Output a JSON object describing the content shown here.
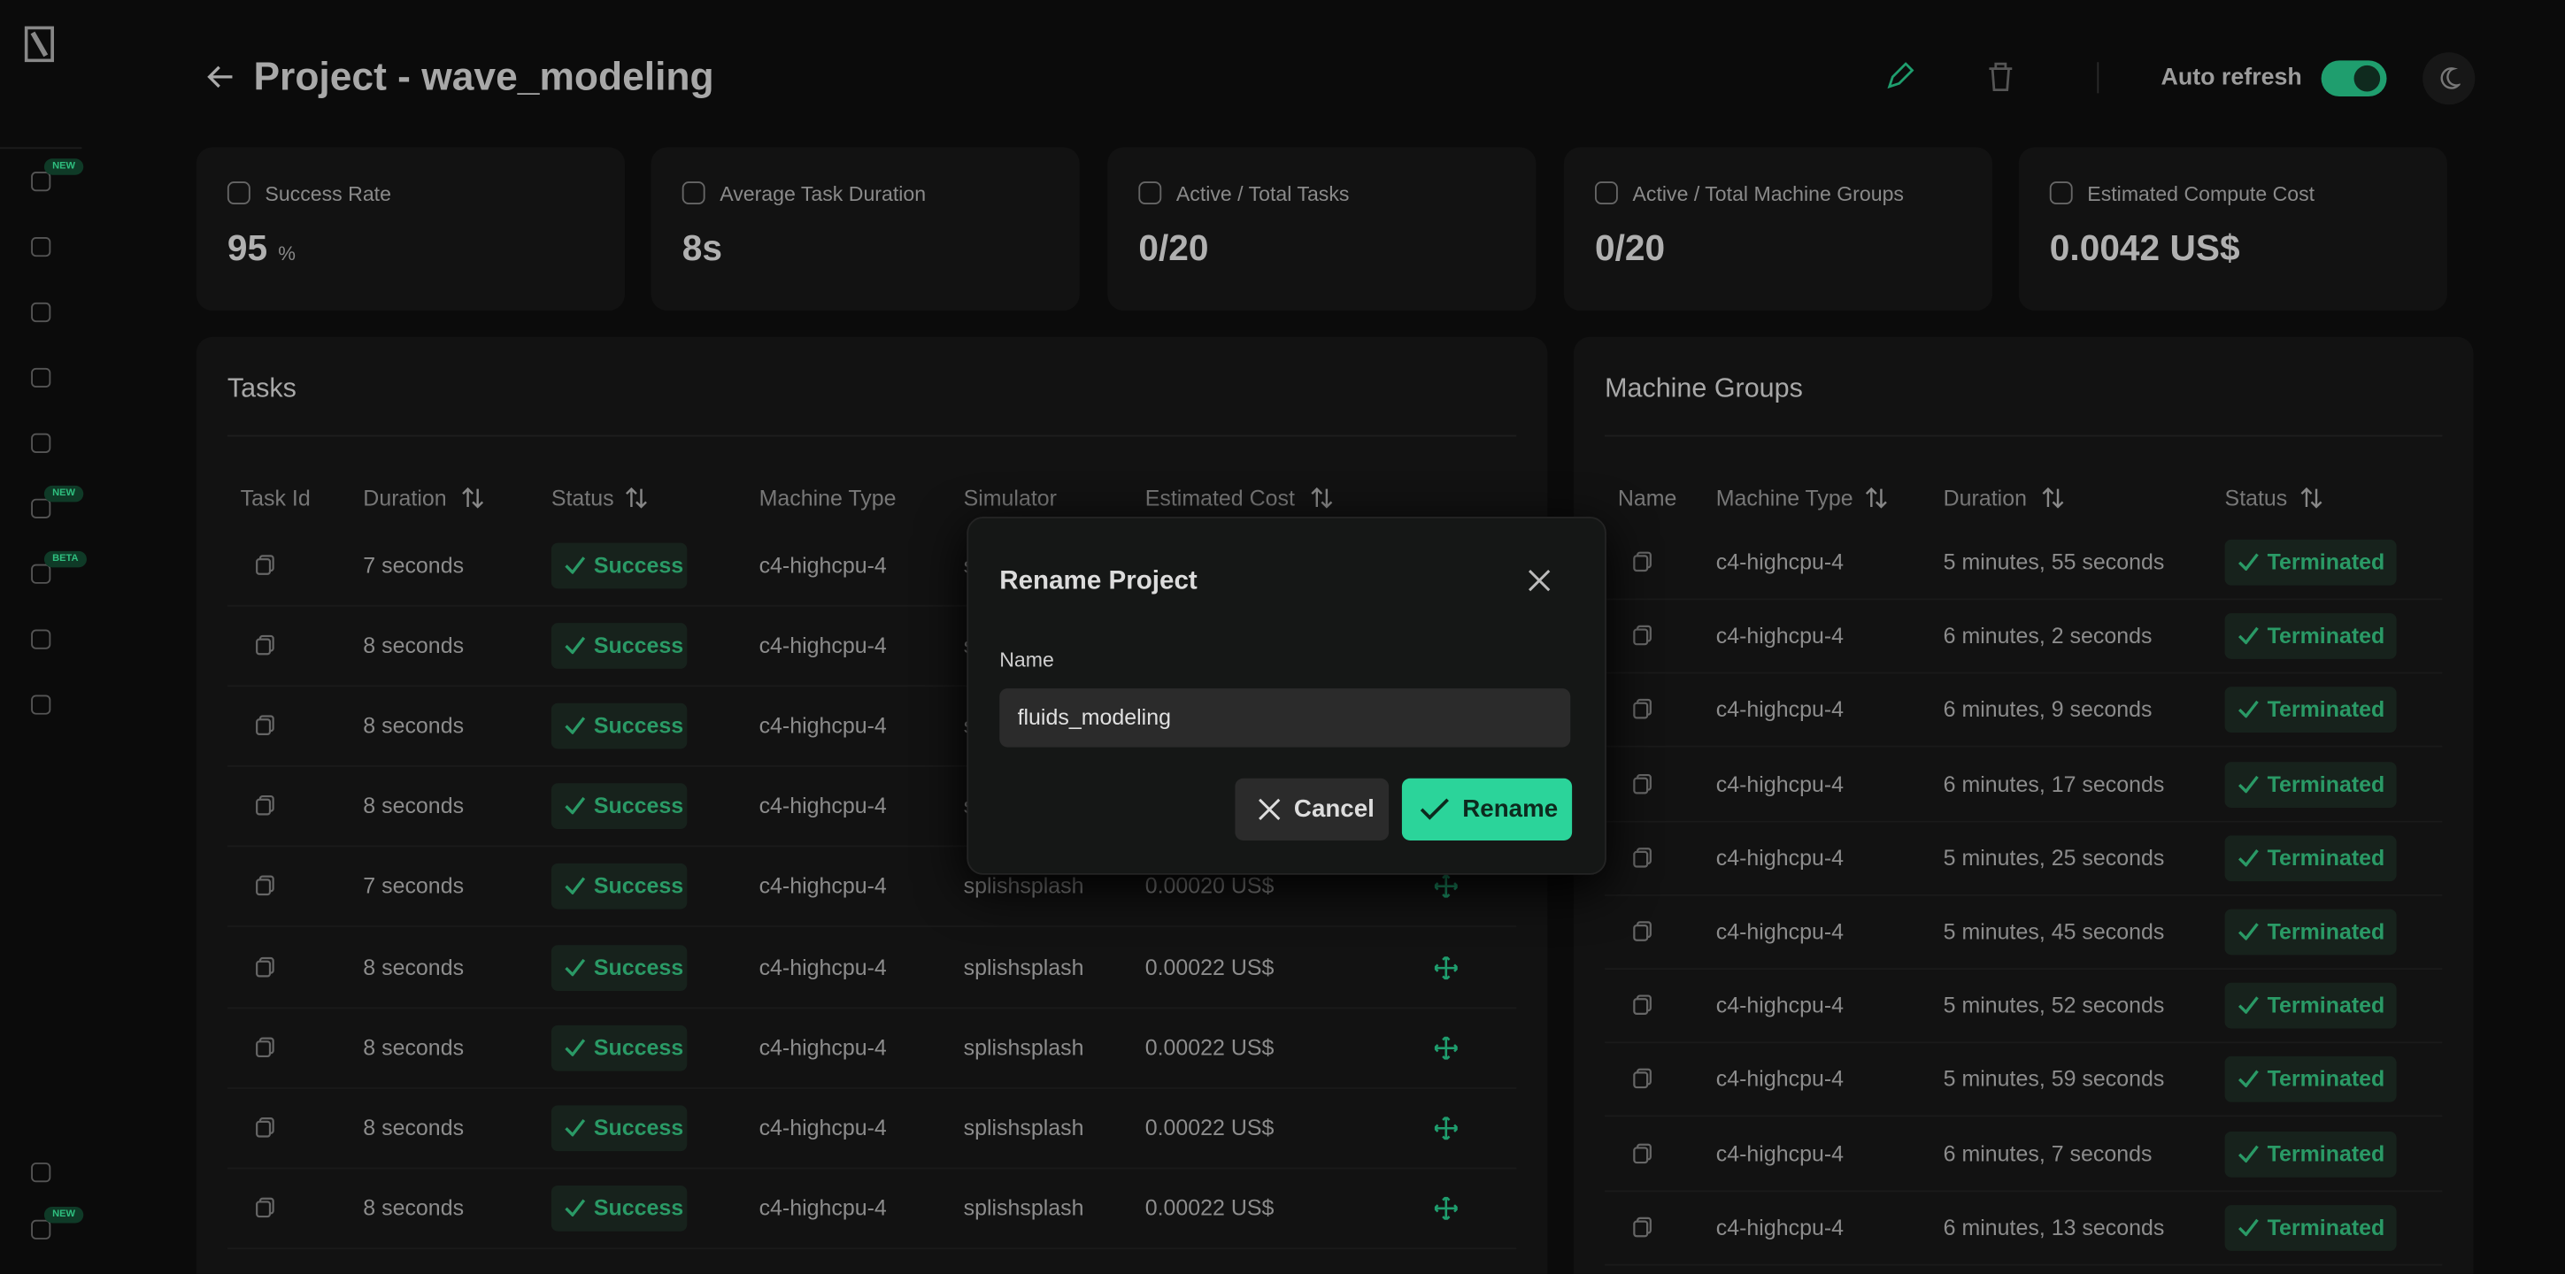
{
  "sidebar": {
    "badges": [
      "NEW",
      "NEW",
      "BETA",
      "NEW"
    ]
  },
  "header": {
    "title": "Project - wave_modeling",
    "auto_refresh_label": "Auto refresh"
  },
  "stats": [
    {
      "label": "Success Rate",
      "value": "95",
      "unit": "%"
    },
    {
      "label": "Average Task Duration",
      "value": "8s"
    },
    {
      "label": "Active / Total Tasks",
      "value": "0/20"
    },
    {
      "label": "Active / Total Machine Groups",
      "value": "0/20"
    },
    {
      "label": "Estimated Compute Cost",
      "value": "0.0042 US$"
    }
  ],
  "tasks": {
    "title": "Tasks",
    "columns": [
      "Task Id",
      "Duration",
      "Status",
      "Machine Type",
      "Simulator",
      "Estimated Cost"
    ],
    "rows": [
      {
        "duration": "7 seconds",
        "status": "Success",
        "machine_type": "c4-highcpu-4",
        "simulator": "splishsplash"
      },
      {
        "duration": "8 seconds",
        "status": "Success",
        "machine_type": "c4-highcpu-4",
        "simulator": "splishsplash"
      },
      {
        "duration": "8 seconds",
        "status": "Success",
        "machine_type": "c4-highcpu-4",
        "simulator": "splishsplash"
      },
      {
        "duration": "8 seconds",
        "status": "Success",
        "machine_type": "c4-highcpu-4",
        "simulator": "splishsplash"
      },
      {
        "duration": "7 seconds",
        "status": "Success",
        "machine_type": "c4-highcpu-4",
        "simulator": "splishsplash",
        "cost": "0.00020 US$"
      },
      {
        "duration": "8 seconds",
        "status": "Success",
        "machine_type": "c4-highcpu-4",
        "simulator": "splishsplash",
        "cost": "0.00022 US$"
      },
      {
        "duration": "8 seconds",
        "status": "Success",
        "machine_type": "c4-highcpu-4",
        "simulator": "splishsplash",
        "cost": "0.00022 US$"
      },
      {
        "duration": "8 seconds",
        "status": "Success",
        "machine_type": "c4-highcpu-4",
        "simulator": "splishsplash",
        "cost": "0.00022 US$"
      },
      {
        "duration": "8 seconds",
        "status": "Success",
        "machine_type": "c4-highcpu-4",
        "simulator": "splishsplash",
        "cost": "0.00022 US$"
      }
    ]
  },
  "machine_groups": {
    "title": "Machine Groups",
    "columns": [
      "Name",
      "Machine Type",
      "Duration",
      "Status"
    ],
    "rows": [
      {
        "machine_type": "c4-highcpu-4",
        "duration": "5 minutes, 55 seconds",
        "status": "Terminated"
      },
      {
        "machine_type": "c4-highcpu-4",
        "duration": "6 minutes, 2 seconds",
        "status": "Terminated"
      },
      {
        "machine_type": "c4-highcpu-4",
        "duration": "6 minutes, 9 seconds",
        "status": "Terminated"
      },
      {
        "machine_type": "c4-highcpu-4",
        "duration": "6 minutes, 17 seconds",
        "status": "Terminated"
      },
      {
        "machine_type": "c4-highcpu-4",
        "duration": "5 minutes, 25 seconds",
        "status": "Terminated"
      },
      {
        "machine_type": "c4-highcpu-4",
        "duration": "5 minutes, 45 seconds",
        "status": "Terminated"
      },
      {
        "machine_type": "c4-highcpu-4",
        "duration": "5 minutes, 52 seconds",
        "status": "Terminated"
      },
      {
        "machine_type": "c4-highcpu-4",
        "duration": "5 minutes, 59 seconds",
        "status": "Terminated"
      },
      {
        "machine_type": "c4-highcpu-4",
        "duration": "6 minutes, 7 seconds",
        "status": "Terminated"
      },
      {
        "machine_type": "c4-highcpu-4",
        "duration": "6 minutes, 13 seconds",
        "status": "Terminated"
      }
    ]
  },
  "modal": {
    "title": "Rename Project",
    "field_label": "Name",
    "input_value": "fluids_modeling",
    "cancel": "Cancel",
    "confirm": "Rename"
  }
}
